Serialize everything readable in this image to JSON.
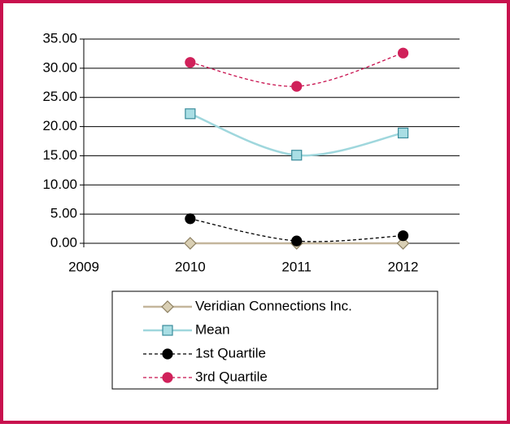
{
  "chart_data": {
    "type": "line",
    "x": [
      2010,
      2011,
      2012
    ],
    "xlim": [
      2009,
      2012.5
    ],
    "xticks": [
      2009,
      2010,
      2011,
      2012
    ],
    "ylim": [
      0,
      35
    ],
    "yticks": [
      {
        "value": 0,
        "label": "0.00"
      },
      {
        "value": 5,
        "label": "5.00"
      },
      {
        "value": 10,
        "label": "10.00"
      },
      {
        "value": 15,
        "label": "15.00"
      },
      {
        "value": 20,
        "label": "20.00"
      },
      {
        "value": 25,
        "label": "25.00"
      },
      {
        "value": 30,
        "label": "30.00"
      },
      {
        "value": 35,
        "label": "35.00"
      }
    ],
    "grid": true,
    "smooth": true,
    "legend": "bottom",
    "series": [
      {
        "name": "Veridian Connections Inc.",
        "color": "#c4b69c",
        "marker": "diamond",
        "marker_fill": "#d9cfb4",
        "marker_stroke": "#8c7f60",
        "line_style": "solid",
        "values": [
          0,
          0,
          0
        ]
      },
      {
        "name": "Mean",
        "color": "#9fd7dd",
        "marker": "square",
        "marker_fill": "#a9dee4",
        "marker_stroke": "#3a8c9b",
        "line_style": "solid",
        "values": [
          22.2,
          15.1,
          18.9
        ]
      },
      {
        "name": "1st Quartile",
        "color": "#000000",
        "marker": "circle",
        "marker_fill": "#000000",
        "marker_stroke": "#000000",
        "line_style": "dashed",
        "values": [
          4.2,
          0.4,
          1.3
        ]
      },
      {
        "name": "3rd Quartile",
        "color": "#c8104e",
        "marker": "circle",
        "marker_fill": "#d0215a",
        "marker_stroke": "#d0215a",
        "line_style": "dashed",
        "values": [
          31.0,
          26.9,
          32.6
        ]
      }
    ]
  }
}
